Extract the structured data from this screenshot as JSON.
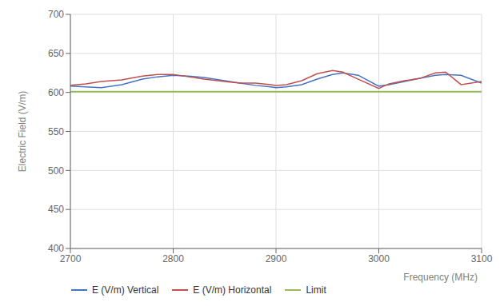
{
  "chart_data": {
    "type": "line",
    "xlabel": "Frequency (MHz)",
    "ylabel": "Electric Field (V/m)",
    "xlim": [
      2700,
      3100
    ],
    "ylim": [
      400,
      700
    ],
    "xticks": [
      2700,
      2800,
      2900,
      3000,
      3100
    ],
    "yticks": [
      400,
      450,
      500,
      550,
      600,
      650,
      700
    ],
    "grid": true,
    "legend": "bottom",
    "x": [
      2700,
      2715,
      2730,
      2750,
      2770,
      2785,
      2800,
      2815,
      2830,
      2850,
      2865,
      2880,
      2895,
      2900,
      2910,
      2925,
      2940,
      2955,
      2965,
      2980,
      3000,
      3010,
      3025,
      3040,
      3055,
      3065,
      3080,
      3100
    ],
    "series": [
      {
        "name": "E (V/m) Vertical",
        "color": "#4472c4",
        "values": [
          608,
          607,
          606,
          610,
          617,
          620,
          622,
          621,
          619,
          615,
          612,
          609,
          607,
          606,
          607,
          610,
          617,
          623,
          625,
          622,
          608,
          610,
          614,
          618,
          622,
          623,
          622,
          612
        ]
      },
      {
        "name": "E (V/m) Horizontal",
        "color": "#c0504d",
        "values": [
          609,
          611,
          614,
          616,
          621,
          623,
          623,
          620,
          617,
          614,
          612,
          612,
          610,
          609,
          610,
          615,
          624,
          628,
          626,
          617,
          605,
          611,
          615,
          618,
          625,
          626,
          610,
          614
        ]
      }
    ],
    "reference_lines": [
      {
        "name": "Limit",
        "y": 601,
        "color": "#9bbb59"
      }
    ]
  }
}
